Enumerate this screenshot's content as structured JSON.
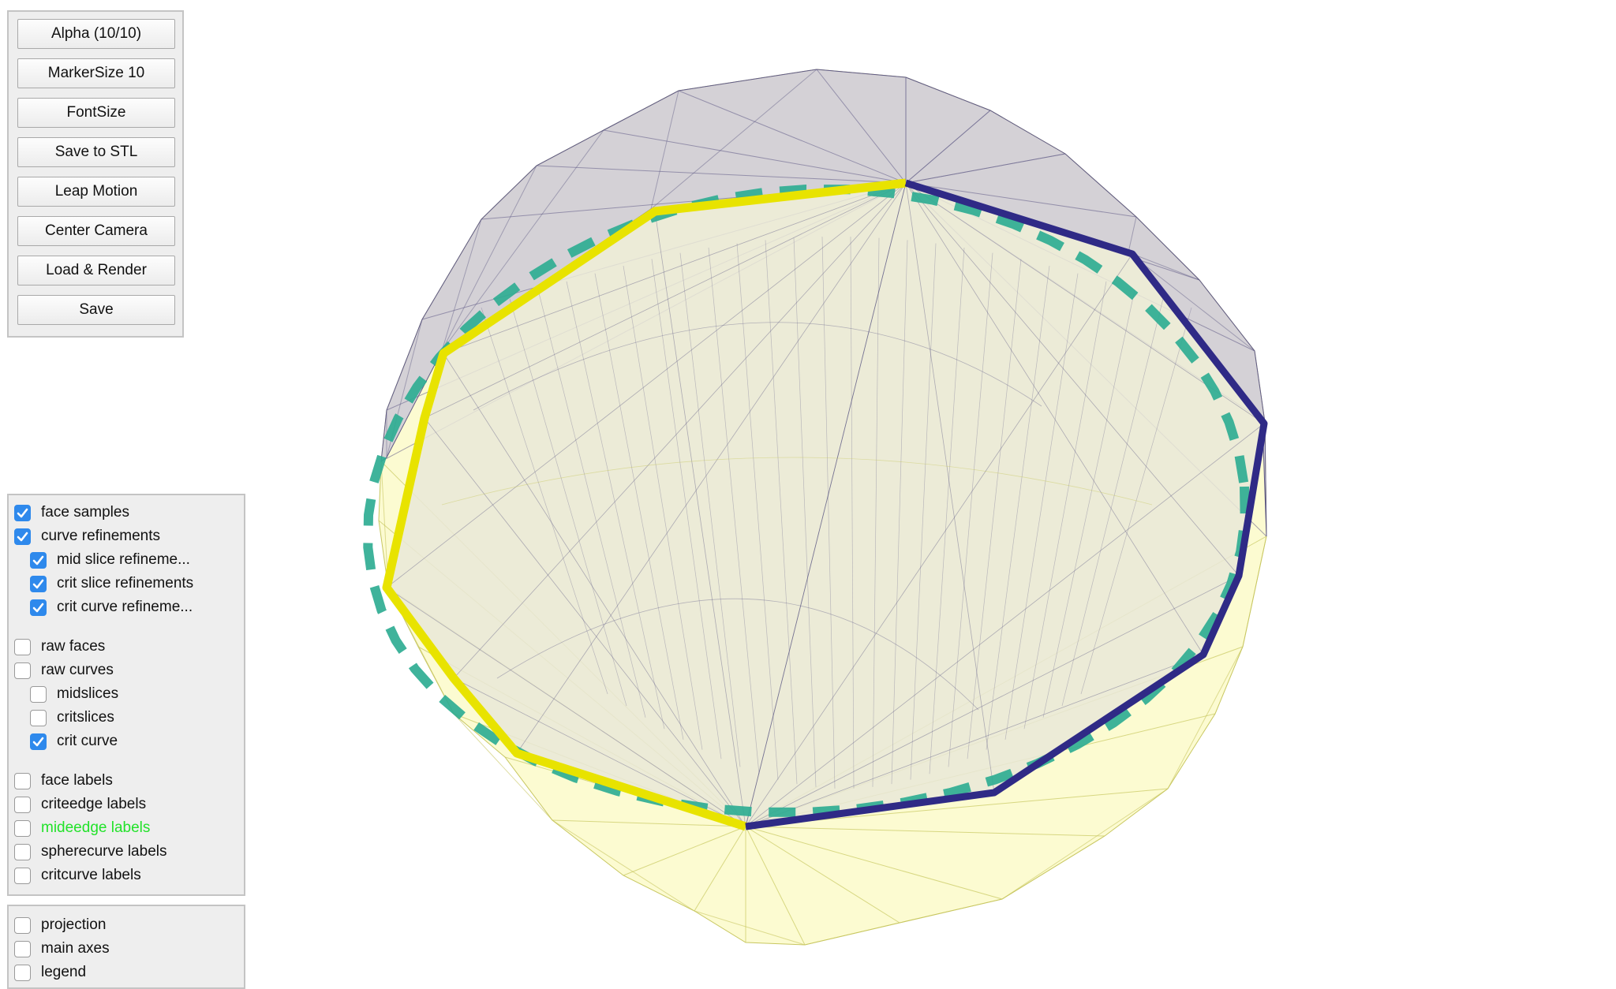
{
  "buttons": [
    {
      "name": "alpha-button",
      "label": "Alpha (10/10)"
    },
    {
      "name": "markersize-button",
      "label": "MarkerSize 10"
    },
    {
      "name": "fontsize-button",
      "label": "FontSize"
    },
    {
      "name": "save-stl-button",
      "label": "Save to STL"
    },
    {
      "name": "leap-motion-button",
      "label": "Leap Motion"
    },
    {
      "name": "center-camera-button",
      "label": "Center Camera"
    },
    {
      "name": "load-render-button",
      "label": "Load & Render"
    },
    {
      "name": "save-button",
      "label": "Save"
    }
  ],
  "display_options": {
    "face_samples": {
      "label": "face samples",
      "checked": true
    },
    "curve_refinements": {
      "label": "curve refinements",
      "checked": true
    },
    "mid_slice_refinements": {
      "label": "mid slice refineme...",
      "checked": true
    },
    "crit_slice_refinements": {
      "label": "crit slice refinements",
      "checked": true
    },
    "crit_curve_refinements": {
      "label": "crit curve refineme...",
      "checked": true
    },
    "raw_faces": {
      "label": "raw faces",
      "checked": false
    },
    "raw_curves": {
      "label": "raw curves",
      "checked": false
    },
    "midslices": {
      "label": "midslices",
      "checked": false
    },
    "critslices": {
      "label": "critslices",
      "checked": false
    },
    "crit_curve": {
      "label": "crit curve",
      "checked": true
    },
    "face_labels": {
      "label": "face labels",
      "checked": false
    },
    "criteedge_labels": {
      "label": "criteedge labels",
      "checked": false
    },
    "mideedge_labels": {
      "label": "mideedge labels",
      "checked": false,
      "color": "#22e22a"
    },
    "spherecurve_labels": {
      "label": "spherecurve labels",
      "checked": false
    },
    "critcurve_labels": {
      "label": "critcurve labels",
      "checked": false
    }
  },
  "view_options": {
    "projection": {
      "label": "projection",
      "checked": false
    },
    "main_axes": {
      "label": "main axes",
      "checked": false
    },
    "legend": {
      "label": "legend",
      "checked": false
    }
  },
  "render_colors": {
    "upper_face": "#b3aedb",
    "lower_face": "#f9f79a",
    "mesh_upper": "#5f5a86",
    "mesh_lower": "#c8c760",
    "inner_face": "#e9e7d8",
    "crit_curve_left": "#e8e300",
    "crit_curve_right": "#2f2a86",
    "sphere_curve": "#2fad93"
  }
}
